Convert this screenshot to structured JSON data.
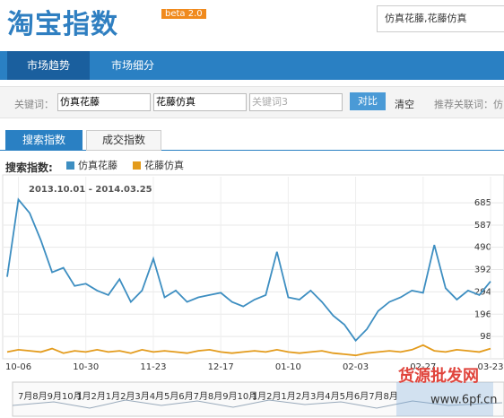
{
  "header": {
    "logo": "淘宝指数",
    "badge": "beta 2.0",
    "search": "仿真花藤,花藤仿真"
  },
  "nav": {
    "tabs": [
      "市场趋势",
      "市场细分"
    ]
  },
  "keywords": {
    "label": "关键词：",
    "inputs": [
      "仿真花藤",
      "花藤仿真"
    ],
    "placeholder": "关键词3",
    "compare": "对比",
    "clear": "清空",
    "related": "推荐关联词：仿"
  },
  "subtabs": [
    "搜索指数",
    "成交指数"
  ],
  "legend_title": "搜索指数:",
  "chart_data": {
    "type": "line",
    "subtitle": "2013.10.01 - 2014.03.25",
    "categories": [
      null,
      "10-06",
      null,
      null,
      null,
      null,
      null,
      "10-30",
      null,
      null,
      null,
      null,
      null,
      "11-23",
      null,
      null,
      null,
      null,
      null,
      "12-17",
      null,
      null,
      null,
      null,
      null,
      "01-10",
      null,
      null,
      null,
      null,
      null,
      "02-03",
      null,
      null,
      null,
      null,
      null,
      "02-27",
      null,
      null,
      null,
      null,
      null,
      "03-23"
    ],
    "series": [
      {
        "name": "仿真花藤",
        "color": "#3d8ec1",
        "values": [
          360,
          700,
          640,
          520,
          380,
          400,
          320,
          330,
          300,
          280,
          350,
          250,
          300,
          440,
          270,
          300,
          250,
          270,
          280,
          290,
          250,
          230,
          260,
          280,
          470,
          270,
          260,
          300,
          250,
          190,
          150,
          80,
          130,
          210,
          250,
          270,
          300,
          290,
          500,
          310,
          260,
          300,
          280,
          340
        ]
      },
      {
        "name": "花藤仿真",
        "color": "#e39b1c",
        "values": [
          30,
          40,
          35,
          30,
          45,
          25,
          35,
          30,
          40,
          30,
          35,
          25,
          40,
          30,
          35,
          30,
          25,
          35,
          40,
          30,
          25,
          30,
          35,
          30,
          40,
          30,
          25,
          30,
          35,
          25,
          20,
          15,
          25,
          30,
          35,
          30,
          40,
          60,
          35,
          30,
          40,
          35,
          30,
          45
        ]
      }
    ],
    "ylim": [
      0,
      800
    ],
    "yticks": [
      98,
      196,
      294,
      392,
      490,
      587,
      685
    ],
    "grid": true
  },
  "navigator": {
    "labels": [
      "7月",
      "8月",
      "9月",
      "10月",
      "1月",
      "2月",
      "1月",
      "2月",
      "3月",
      "4月",
      "5月",
      "6月",
      "7月",
      "8月",
      "9月",
      "10月",
      "1月",
      "2月",
      "1月",
      "2月",
      "3月",
      "4月",
      "5月",
      "6月",
      "7月",
      "8月"
    ]
  },
  "watermark": {
    "name": "货源批发网",
    "url": "www.6pf.cn"
  }
}
